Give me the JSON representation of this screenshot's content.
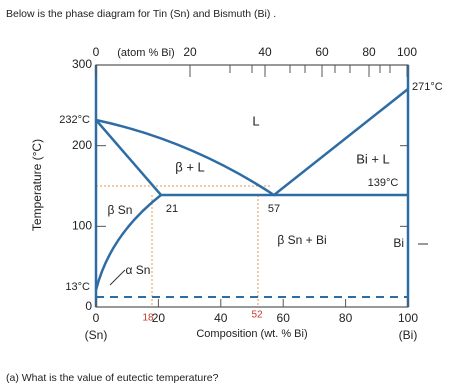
{
  "intro": "Below is the phase diagram for Tin (Sn) and Bismuth (Bi) .",
  "diagram": {
    "y_axis_label": "Temperature (°C)",
    "top_axis_label": "(atom % Bi)",
    "top_ticks": [
      0,
      20,
      40,
      60,
      80,
      100
    ],
    "bottom_ticks": [
      0,
      20,
      40,
      60,
      80,
      100
    ],
    "y_ticks": [
      0,
      100,
      200,
      300
    ],
    "bottom_axis_label": "Composition (wt. % Bi)",
    "left_end": "(Sn)",
    "right_end": "(Bi)",
    "annotations": [
      "232°C",
      "271°C",
      "139°C",
      "13°C",
      "L",
      "β + L",
      "Bi + L",
      "β Sn",
      "21",
      "57",
      "β Sn + Bi",
      "Bi",
      "α Sn",
      "18",
      "52"
    ]
  },
  "question": "(a) What is the value of eutectic temperature?"
}
